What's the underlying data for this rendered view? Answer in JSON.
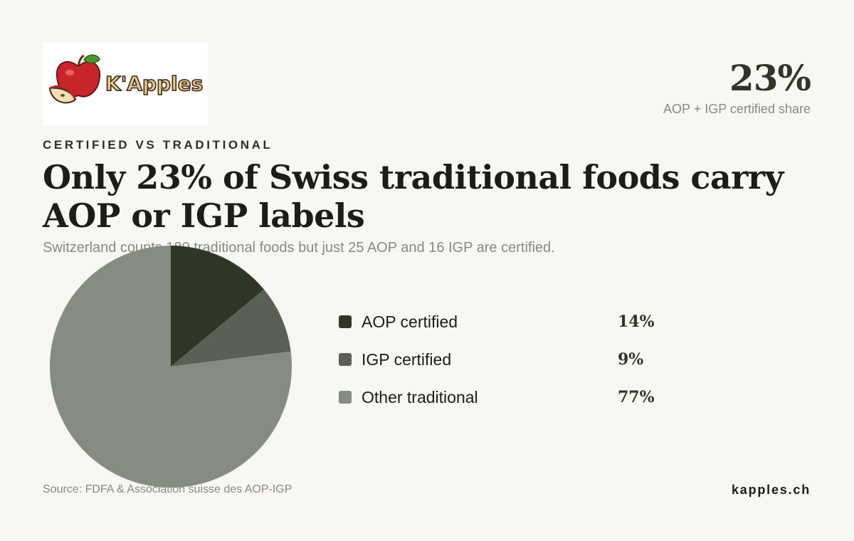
{
  "brand": {
    "logo_text": "K'Apples",
    "website": "kapples.ch"
  },
  "headline_stat": {
    "value": "23%",
    "label": "AOP + IGP certified share"
  },
  "eyebrow": "CERTIFIED VS TRADITIONAL",
  "title": "Only 23% of Swiss traditional foods carry AOP or IGP labels",
  "subtitle": "Switzerland counts 180 traditional foods but just 25 AOP and 16 IGP are certified.",
  "source": "Source: FDFA & Association suisse des AOP-IGP",
  "chart_data": {
    "type": "pie",
    "categories": [
      "AOP certified",
      "IGP certified",
      "Other traditional"
    ],
    "values": [
      14,
      9,
      77
    ],
    "value_labels": [
      "14%",
      "9%",
      "77%"
    ],
    "colors": [
      "#2e3626",
      "#5a6154",
      "#878c82"
    ],
    "legend_position": "right"
  }
}
